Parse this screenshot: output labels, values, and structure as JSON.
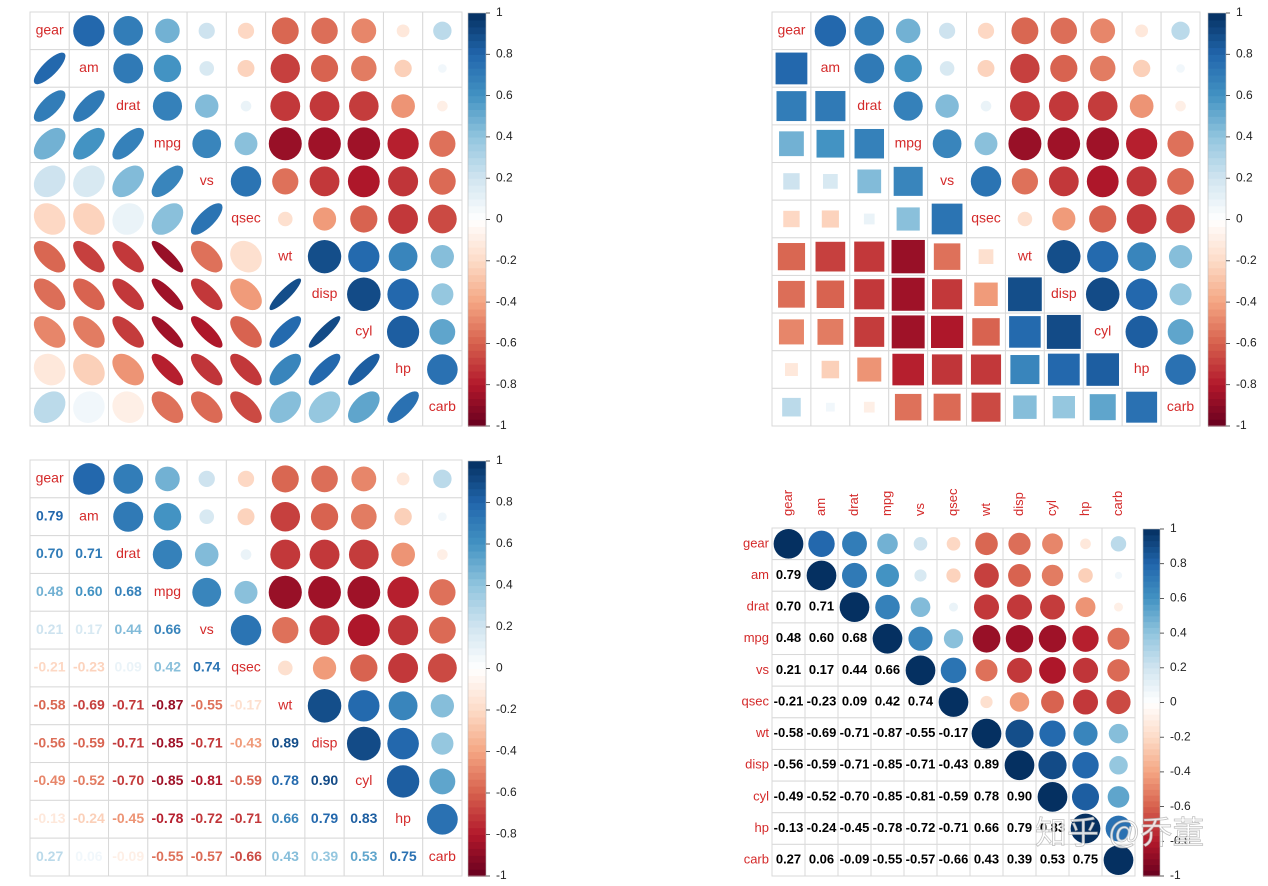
{
  "chart_data": {
    "type": "corrplot",
    "variables": [
      "gear",
      "am",
      "drat",
      "mpg",
      "vs",
      "qsec",
      "wt",
      "disp",
      "cyl",
      "hp",
      "carb"
    ],
    "diagonal": 1,
    "values": [
      [
        0.79
      ],
      [
        0.7,
        0.71
      ],
      [
        0.48,
        0.6,
        0.68
      ],
      [
        0.21,
        0.17,
        0.44,
        0.66
      ],
      [
        -0.21,
        -0.23,
        0.09,
        0.42,
        0.74
      ],
      [
        -0.58,
        -0.69,
        -0.71,
        -0.87,
        -0.55,
        -0.17
      ],
      [
        -0.56,
        -0.59,
        -0.71,
        -0.85,
        -0.71,
        -0.43,
        0.89
      ],
      [
        -0.49,
        -0.52,
        -0.7,
        -0.85,
        -0.81,
        -0.59,
        0.78,
        0.9
      ],
      [
        -0.13,
        -0.24,
        -0.45,
        -0.78,
        -0.72,
        -0.71,
        0.66,
        0.79,
        0.83
      ],
      [
        0.27,
        0.06,
        -0.09,
        -0.55,
        -0.57,
        -0.66,
        0.43,
        0.39,
        0.53,
        0.75
      ]
    ],
    "value_labels": [
      [
        "0.79"
      ],
      [
        "0.70",
        "0.71"
      ],
      [
        "0.48",
        "0.60",
        "0.68"
      ],
      [
        "0.21",
        "0.17",
        "0.44",
        "0.66"
      ],
      [
        "-0.21",
        "-0.23",
        "0.09",
        "0.42",
        "0.74"
      ],
      [
        "-0.58",
        "-0.69",
        "-0.71",
        "-0.87",
        "-0.55",
        "-0.17"
      ],
      [
        "-0.56",
        "-0.59",
        "-0.71",
        "-0.85",
        "-0.71",
        "-0.43",
        "0.89"
      ],
      [
        "-0.49",
        "-0.52",
        "-0.70",
        "-0.85",
        "-0.81",
        "-0.59",
        "0.78",
        "0.90"
      ],
      [
        "-0.13",
        "-0.24",
        "-0.45",
        "-0.78",
        "-0.72",
        "-0.71",
        "0.66",
        "0.79",
        "0.83"
      ],
      [
        "0.27",
        "0.06",
        "-0.09",
        "-0.55",
        "-0.57",
        "-0.66",
        "0.43",
        "0.39",
        "0.53",
        "0.75"
      ]
    ],
    "colors": [
      "#67001F",
      "#B2182B",
      "#D6604D",
      "#F4A582",
      "#FDDBC7",
      "#FFFFFF",
      "#D1E5F0",
      "#92C5DE",
      "#4393C3",
      "#2166AC",
      "#053061"
    ],
    "label_color": "#D42A2A",
    "ylim": [
      -1,
      1
    ],
    "yticks": [
      -1,
      -0.8,
      -0.6,
      -0.4,
      -0.2,
      0,
      0.2,
      0.4,
      0.6,
      0.8,
      1
    ],
    "panels": [
      {
        "upper": "circle",
        "lower": "ellipse",
        "diagonal_mark": "label",
        "labels": "diagonal"
      },
      {
        "upper": "circle",
        "lower": "square",
        "diagonal_mark": "label",
        "labels": "diagonal"
      },
      {
        "upper": "circle",
        "lower": "number",
        "diagonal_mark": "label",
        "labels": "diagonal",
        "number_color": "value"
      },
      {
        "upper": "circle",
        "lower": "number",
        "diagonal_mark": "circle",
        "labels": "outside",
        "number_color": "#000000"
      }
    ],
    "watermark": "知乎 @乔董"
  }
}
